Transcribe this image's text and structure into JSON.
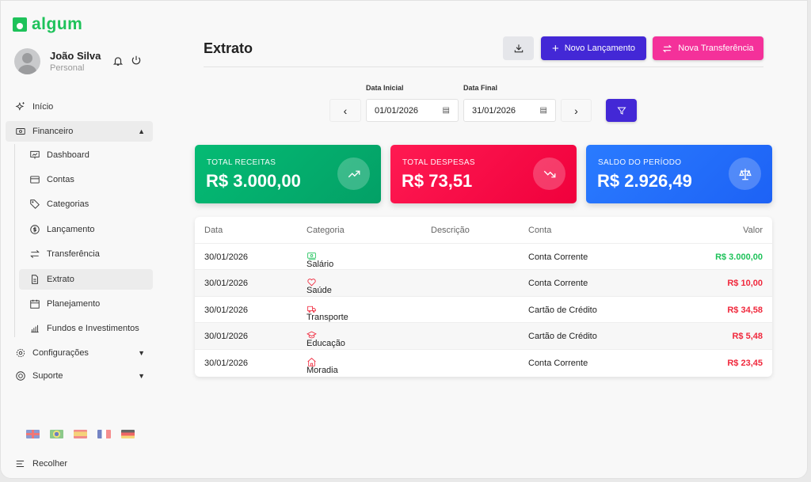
{
  "app": {
    "logo": "algum"
  },
  "user": {
    "name": "João Silva",
    "role": "Personal"
  },
  "sidebar": {
    "items": [
      {
        "label": "Início"
      },
      {
        "label": "Financeiro"
      },
      {
        "label": "Dashboard"
      },
      {
        "label": "Contas"
      },
      {
        "label": "Categorias"
      },
      {
        "label": "Lançamento"
      },
      {
        "label": "Transferência"
      },
      {
        "label": "Extrato"
      },
      {
        "label": "Planejamento"
      },
      {
        "label": "Fundos e Investimentos"
      },
      {
        "label": "Configurações"
      },
      {
        "label": "Suporte"
      }
    ],
    "collapse": "Recolher",
    "languages": [
      "en",
      "pt-BR",
      "es",
      "fr",
      "de"
    ]
  },
  "header": {
    "title": "Extrato",
    "new_entry": "Novo Lançamento",
    "new_transfer": "Nova Transferência"
  },
  "filters": {
    "start_label": "Data Inicial",
    "start_value": "01/01/2026",
    "end_label": "Data Final",
    "end_value": "31/01/2026"
  },
  "cards": [
    {
      "label": "TOTAL RECEITAS",
      "value": "R$ 3.000,00",
      "color": "#05b66f",
      "icon": "trending-up-icon"
    },
    {
      "label": "TOTAL DESPESAS",
      "value": "R$ 73,51",
      "color": "#fb0f4c",
      "icon": "trending-down-icon"
    },
    {
      "label": "SALDO DO PERÍODO",
      "value": "R$ 2.926,49",
      "color": "#2370fd",
      "icon": "scale-icon"
    }
  ],
  "table": {
    "headers": [
      "Data",
      "Categoria",
      "Descrição",
      "Conta",
      "Valor"
    ],
    "rows": [
      {
        "date": "30/01/2026",
        "category": "Salário",
        "description": "",
        "account": "Conta Corrente",
        "value": "R$ 3.000,00",
        "type": "income"
      },
      {
        "date": "30/01/2026",
        "category": "Saúde",
        "description": "",
        "account": "Conta Corrente",
        "value": "R$ 10,00",
        "type": "expense"
      },
      {
        "date": "30/01/2026",
        "category": "Transporte",
        "description": "",
        "account": "Cartão de Crédito",
        "value": "R$ 34,58",
        "type": "expense"
      },
      {
        "date": "30/01/2026",
        "category": "Educação",
        "description": "",
        "account": "Cartão de Crédito",
        "value": "R$ 5,48",
        "type": "expense"
      },
      {
        "date": "30/01/2026",
        "category": "Moradia",
        "description": "",
        "account": "Conta Corrente",
        "value": "R$ 23,45",
        "type": "expense"
      }
    ]
  },
  "colors": {
    "income": "#1ec25a",
    "expense": "#f0283c",
    "primary": "#4328d6",
    "pink": "#f4319a"
  }
}
